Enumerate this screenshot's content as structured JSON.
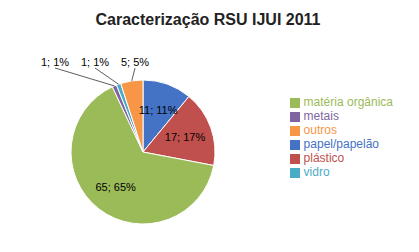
{
  "chart_data": {
    "type": "pie",
    "title": "Caracterização RSU IJUI 2011",
    "categories": [
      "papel/papelão",
      "plástico",
      "matéria orgânica",
      "metais",
      "vidro",
      "outros"
    ],
    "values": [
      11,
      17,
      65,
      1,
      1,
      5
    ],
    "value_labels": [
      "11; 11%",
      "17; 17%",
      "65; 65%",
      "1; 1%",
      "1; 1%",
      "5; 5%"
    ],
    "colors": [
      "#4472C4",
      "#C0504D",
      "#9BBB59",
      "#8064A2",
      "#4BACC6",
      "#F79646"
    ],
    "data_labels": true,
    "legend": "right"
  }
}
